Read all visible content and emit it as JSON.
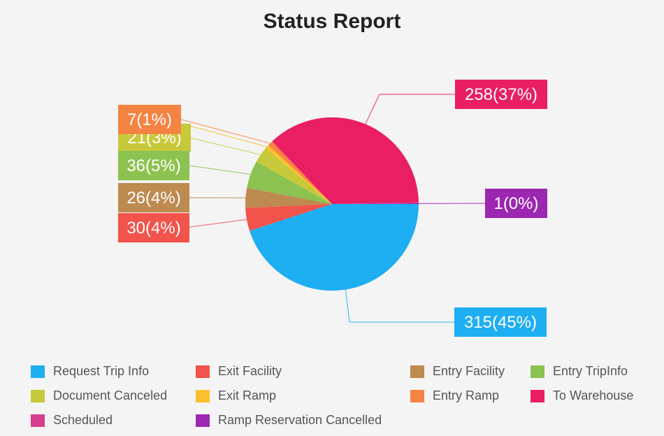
{
  "chart_data": {
    "type": "pie",
    "title": "Status Report",
    "legend_position": "bottom",
    "slices": [
      {
        "name": "Request Trip Info",
        "value": 315,
        "label": "315(45%)",
        "color": "#1eaef2"
      },
      {
        "name": "Exit Facility",
        "value": 30,
        "label": "30(4%)",
        "color": "#f2534a"
      },
      {
        "name": "Entry Facility",
        "value": 26,
        "label": "26(4%)",
        "color": "#bd8a4f"
      },
      {
        "name": "Entry TripInfo",
        "value": 36,
        "label": "36(5%)",
        "color": "#8cc24f"
      },
      {
        "name": "Document Canceled",
        "value": 21,
        "label": "21(3%)",
        "color": "#c7c93a"
      },
      {
        "name": "Exit Ramp",
        "value": 5,
        "label": "",
        "color": "#fbc02d"
      },
      {
        "name": "Entry Ramp",
        "value": 7,
        "label": "7(1%)",
        "color": "#f58342"
      },
      {
        "name": "To Warehouse",
        "value": 258,
        "label": "258(37%)",
        "color": "#e91e63"
      },
      {
        "name": "Scheduled",
        "value": 1,
        "label": "",
        "color": "#d63d8e"
      },
      {
        "name": "Ramp Reservation Cancelled",
        "value": 1,
        "label": "1(0%)",
        "color": "#9c27b0"
      }
    ]
  }
}
